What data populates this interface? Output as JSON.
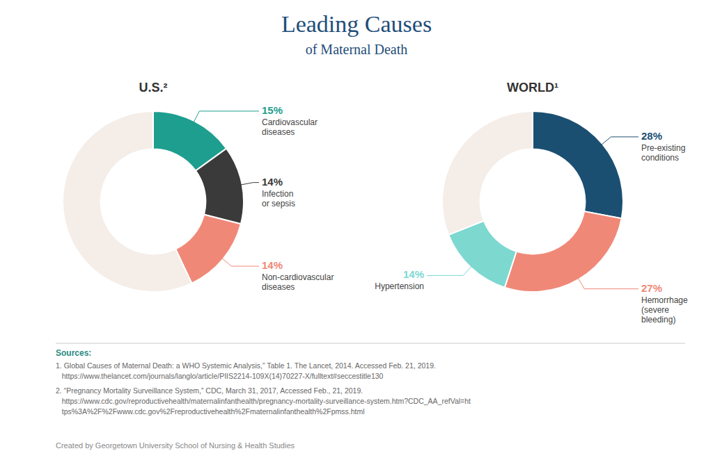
{
  "title": "Leading Causes",
  "subtitle": "of Maternal Death",
  "chart_data": [
    {
      "type": "donut",
      "title": "U.S.²",
      "categories": [
        "Cardiovascular\ndiseases",
        "Infection\nor sepsis",
        "Non-cardiovascular\ndiseases",
        null
      ],
      "values": [
        15,
        14,
        14,
        57
      ],
      "colors": [
        "#1e9e8e",
        "#3a3a3a",
        "#f08878",
        "#f5ede8"
      ],
      "data_labels": true,
      "value_labels": [
        "15%",
        "14%",
        "14%",
        null
      ]
    },
    {
      "type": "donut",
      "title": "WORLD¹",
      "categories": [
        "Pre-existing\nconditions",
        "Hemorrhage\n(severe\nbleeding)",
        "Hypertension",
        null
      ],
      "values": [
        28,
        27,
        14,
        31
      ],
      "colors": [
        "#1a4f72",
        "#f08878",
        "#7dd8d0",
        "#f5ede8"
      ],
      "data_labels": true,
      "value_labels": [
        "28%",
        "27%",
        "14%",
        null
      ]
    }
  ],
  "annotations": [
    "Sources:",
    "1. Global Causes of Maternal Death: a WHO Systemic Analysis,” Table 1. The Lancet, 2014. Accessed Feb. 21, 2019.",
    "   https://www.thelancet.com/journals/langlo/article/PIIS2214-109X(14)70227-X/fulltext#seccestitle130",
    "2. “Pregnancy Mortality Surveillance System,” CDC, March 31, 2017, Accessed Feb., 21, 2019.",
    "   https://www.cdc.gov/reproductivehealth/maternalinfanthealth/pregnancy-mortality-surveillance-system.htm?CDC_AA_refVal=ht",
    "   tps%3A%2F%2Fwww.cdc.gov%2Freproductivehealth%2Fmaternalinfanthealth%2Fpmss.html",
    "Created by Georgetown University School of Nursing & Health Studies"
  ]
}
